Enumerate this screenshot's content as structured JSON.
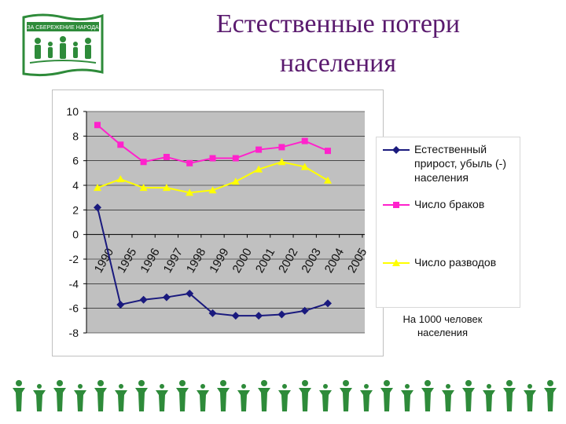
{
  "page": {
    "title_line1": "Естественные потери",
    "title_line2": "населения",
    "logo_text": "ЗА СБЕРЕЖЕНИЕ НАРОДА",
    "note_line1": "На 1000 человек",
    "note_line2": "населения"
  },
  "colors": {
    "title": "#5a1a6e",
    "logo_green": "#2e8b3a",
    "plot_bg": "#c0c0c0",
    "series_1": "#1a1a7e",
    "series_2": "#ff22cc",
    "series_3": "#ffff00"
  },
  "chart_data": {
    "type": "line",
    "categories": [
      "1990",
      "1995",
      "1996",
      "1997",
      "1998",
      "1999",
      "2000",
      "2001",
      "2002",
      "2003",
      "2004",
      "2005"
    ],
    "ylim": [
      -8,
      10
    ],
    "yticks": [
      10,
      8,
      6,
      4,
      2,
      0,
      -2,
      -4,
      -6,
      -8
    ],
    "grid": true,
    "legend_position": "right",
    "series": [
      {
        "name": "Естественный прирост, убыль (-) населения",
        "name_lines": [
          "Естественный",
          "прирост, убыль (-)",
          "населения"
        ],
        "marker": "diamond",
        "values": [
          2.2,
          -5.7,
          -5.3,
          -5.1,
          -4.8,
          -6.4,
          -6.6,
          -6.6,
          -6.5,
          -6.2,
          -5.6,
          null
        ]
      },
      {
        "name": "Число браков",
        "name_lines": [
          "Число браков"
        ],
        "marker": "square",
        "values": [
          8.9,
          7.3,
          5.9,
          6.3,
          5.8,
          6.2,
          6.2,
          6.9,
          7.1,
          7.6,
          6.8,
          null
        ]
      },
      {
        "name": "Число разводов",
        "name_lines": [
          "Число разводов"
        ],
        "marker": "triangle",
        "values": [
          3.8,
          4.5,
          3.8,
          3.8,
          3.4,
          3.6,
          4.3,
          5.3,
          5.9,
          5.5,
          4.4,
          null
        ]
      }
    ]
  }
}
